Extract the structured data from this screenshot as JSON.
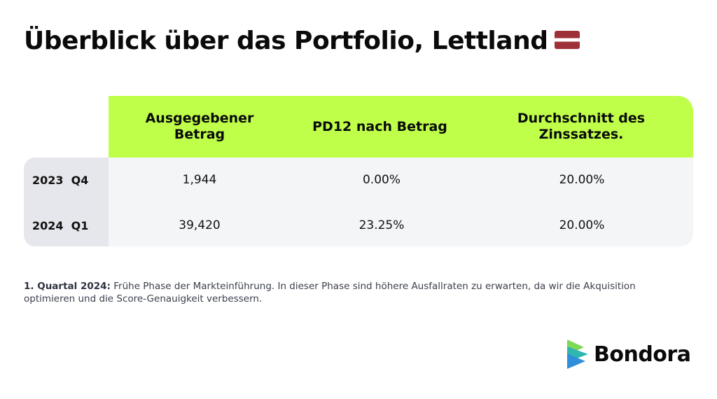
{
  "title": "Überblick über das Portfolio, Lettland",
  "flag_icon": "latvia-flag-icon",
  "table": {
    "headers": [
      "Ausgegebener Betrag",
      "PD12 nach Betrag",
      "Durchschnitt des Zinssatzes."
    ],
    "rows": [
      {
        "label": "2023  Q4",
        "values": [
          "1,944",
          "0.00%",
          "20.00%"
        ]
      },
      {
        "label": "2024  Q1",
        "values": [
          "39,420",
          "23.25%",
          "20.00%"
        ]
      }
    ]
  },
  "footnote": {
    "label": "1. Quartal 2024:",
    "text": " Frühe Phase der Markteinführung. In dieser Phase sind höhere Ausfallraten zu erwarten, da wir die Akquisition optimieren und die Score-Genauigkeit verbessern."
  },
  "logo": {
    "name": "Bondora",
    "icon": "bondora-logo-icon"
  },
  "colors": {
    "header_green": "#bfff4a",
    "flag_red": "#9e3039",
    "row_bg": "#f4f5f7",
    "label_bg": "#e6e7ec"
  }
}
